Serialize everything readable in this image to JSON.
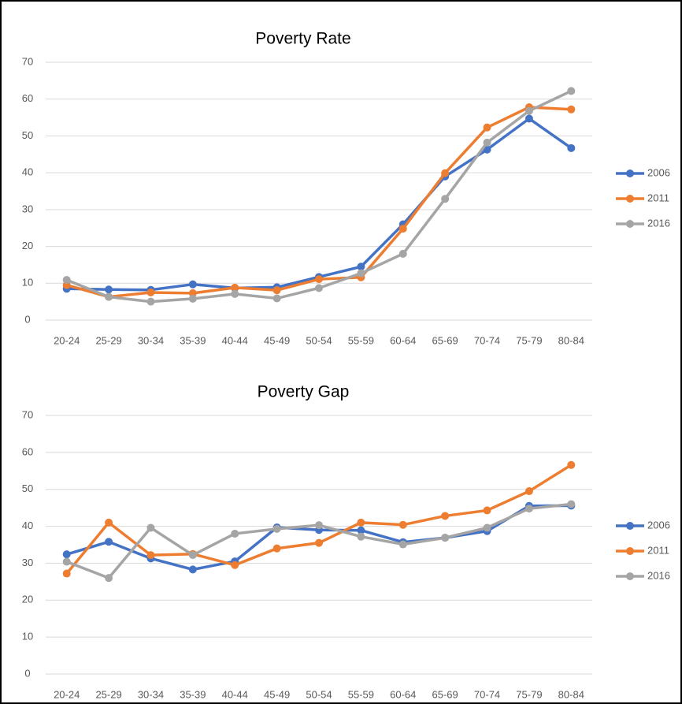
{
  "chart_data": [
    {
      "type": "line",
      "title": "Poverty Rate",
      "categories": [
        "20-24",
        "25-29",
        "30-34",
        "35-39",
        "40-44",
        "45-49",
        "50-54",
        "55-59",
        "60-64",
        "65-69",
        "70-74",
        "75-79",
        "80-84"
      ],
      "series": [
        {
          "name": "2006",
          "color": "#4472c4",
          "values": [
            8.5,
            8.3,
            8.2,
            9.7,
            8.7,
            8.9,
            11.7,
            14.5,
            26,
            39,
            46.3,
            54.7,
            46.7
          ]
        },
        {
          "name": "2011",
          "color": "#ed7d31",
          "values": [
            9.5,
            6.3,
            7.5,
            7.3,
            8.8,
            8.1,
            11.1,
            11.6,
            24.8,
            39.9,
            52.3,
            57.8,
            57.2
          ]
        },
        {
          "name": "2016",
          "color": "#a5a5a5",
          "values": [
            10.9,
            6.3,
            5,
            5.8,
            7.1,
            5.9,
            8.7,
            12.7,
            18,
            32.9,
            48.2,
            56.8,
            62.2
          ]
        }
      ],
      "ylim": [
        0,
        70
      ],
      "yticks": [
        0,
        10,
        20,
        30,
        40,
        50,
        60,
        70
      ],
      "grid": true,
      "legend": "right"
    },
    {
      "type": "line",
      "title": "Poverty Gap",
      "categories": [
        "20-24",
        "25-29",
        "30-34",
        "35-39",
        "40-44",
        "45-49",
        "50-54",
        "55-59",
        "60-64",
        "65-69",
        "70-74",
        "75-79",
        "80-84"
      ],
      "series": [
        {
          "name": "2006",
          "color": "#4472c4",
          "values": [
            32.4,
            35.8,
            31.3,
            28.3,
            30.5,
            39.7,
            39,
            38.9,
            35.7,
            36.9,
            38.7,
            45.5,
            45.6
          ]
        },
        {
          "name": "2011",
          "color": "#ed7d31",
          "values": [
            27.2,
            41,
            32.2,
            32.5,
            29.5,
            34,
            35.5,
            41,
            40.4,
            42.8,
            44.3,
            49.5,
            56.6
          ]
        },
        {
          "name": "2016",
          "color": "#a5a5a5",
          "values": [
            30.4,
            26,
            39.6,
            32.2,
            38,
            39.3,
            40.3,
            37.2,
            35.1,
            36.9,
            39.6,
            44.8,
            46
          ]
        }
      ],
      "ylim": [
        0,
        70
      ],
      "yticks": [
        0,
        10,
        20,
        30,
        40,
        50,
        60,
        70
      ],
      "grid": true,
      "legend": "right"
    }
  ]
}
